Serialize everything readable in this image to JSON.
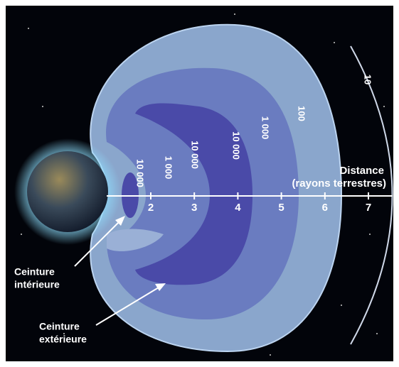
{
  "axis": {
    "title": "Distance",
    "unit": "(rayons terrestres)",
    "ticks": [
      2,
      3,
      4,
      5,
      6,
      7
    ]
  },
  "contours": [
    "10 000",
    "1 000",
    "10 000",
    "10 000",
    "1 000",
    "100",
    "10"
  ],
  "labels": [
    {
      "lines": [
        "Ceinture",
        "intérieure"
      ]
    },
    {
      "lines": [
        "Ceinture",
        "extérieure"
      ]
    }
  ]
}
